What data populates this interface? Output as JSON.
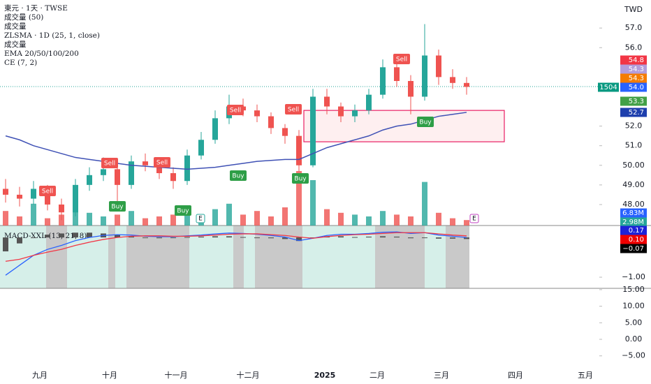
{
  "header": {
    "legend": [
      "東元 · 1天 · TWSE",
      "成交量 (50)",
      "成交量",
      "ZLSMA · 1D (25, 1, close)",
      "成交量",
      "EMA 20/50/100/200",
      "CE (7, 2)"
    ],
    "currency": "TWD",
    "macd_title": "MACD-XXL (13, 21, 8)"
  },
  "chart_data": {
    "type": "candlestick",
    "open": [
      48.8,
      48.5,
      48.3,
      48.8,
      48.0,
      47.6,
      49.0,
      49.5,
      49.8,
      49.0,
      50.2,
      50.0,
      49.6,
      49.2,
      50.5,
      51.3,
      52.4,
      53.0,
      52.8,
      52.5,
      51.9,
      51.5,
      50.0,
      53.5,
      53.0,
      52.5,
      52.8,
      53.6,
      55.0,
      54.3,
      53.5,
      55.6,
      54.5,
      54.2
    ],
    "high": [
      49.3,
      48.9,
      49.2,
      49.0,
      48.3,
      49.3,
      49.9,
      50.4,
      50.1,
      50.5,
      50.6,
      50.3,
      49.9,
      50.8,
      51.7,
      52.8,
      53.6,
      53.4,
      53.1,
      52.7,
      52.1,
      51.8,
      53.9,
      53.9,
      53.2,
      53.1,
      53.9,
      55.4,
      55.3,
      54.6,
      57.2,
      55.9,
      54.9,
      54.5
    ],
    "low": [
      48.1,
      47.9,
      48.0,
      47.7,
      47.2,
      47.4,
      48.7,
      49.2,
      48.0,
      48.8,
      49.7,
      49.3,
      48.8,
      49.0,
      50.3,
      51.1,
      52.1,
      52.5,
      52.2,
      51.6,
      51.1,
      49.7,
      49.9,
      52.6,
      52.2,
      52.2,
      52.6,
      53.4,
      54.0,
      52.6,
      53.3,
      54.1,
      53.9,
      53.6
    ],
    "close": [
      48.5,
      48.3,
      48.8,
      48.0,
      47.6,
      49.0,
      49.5,
      49.8,
      49.0,
      50.2,
      50.0,
      49.6,
      49.2,
      50.5,
      51.3,
      52.4,
      53.0,
      52.8,
      52.5,
      51.9,
      51.5,
      50.0,
      53.5,
      53.0,
      52.5,
      52.8,
      53.6,
      55.0,
      54.3,
      53.5,
      55.6,
      54.5,
      54.2,
      54.0
    ],
    "up_color": "#26a69a",
    "down_color": "#ef5350",
    "ylim": [
      46.93,
      58.43
    ],
    "yticks": [
      {
        "value": 57,
        "label": "57.0"
      },
      {
        "value": 56,
        "label": "56.0"
      },
      {
        "value": 52,
        "label": "52.0"
      },
      {
        "value": 51,
        "label": "51.0"
      },
      {
        "value": 50,
        "label": "50.00"
      },
      {
        "value": 49,
        "label": "49.00"
      },
      {
        "value": 48,
        "label": "48.00"
      }
    ],
    "ema": {
      "color": "#3f51b5",
      "values": [
        51.5,
        51.3,
        51.0,
        50.8,
        50.6,
        50.4,
        50.3,
        50.2,
        50.1,
        50.0,
        49.95,
        49.9,
        49.85,
        49.8,
        49.85,
        49.9,
        50.0,
        50.1,
        50.2,
        50.25,
        50.3,
        50.3,
        50.6,
        50.9,
        51.1,
        51.3,
        51.5,
        51.8,
        52.0,
        52.1,
        52.3,
        52.5,
        52.6,
        52.7
      ]
    },
    "volume": {
      "values": [
        8,
        5,
        12,
        4,
        6,
        9,
        7,
        5,
        6,
        8,
        4,
        5,
        6,
        7,
        5,
        9,
        12,
        6,
        8,
        5,
        10,
        30,
        25,
        9,
        7,
        6,
        5,
        8,
        6,
        5,
        24,
        7,
        4,
        3
      ],
      "ylim": [
        0,
        50
      ]
    },
    "zone": {
      "low": 51.2,
      "high": 52.8
    },
    "x_labels": [
      "九月",
      "十月",
      "十一月",
      "十二月",
      "2025",
      "二月",
      "三月",
      "四月",
      "五月"
    ],
    "signals": [
      "Sell",
      "Sell",
      "Sell",
      "Sell",
      "Sell",
      "Sell",
      "Buy",
      "Buy",
      "Buy",
      "Buy",
      "Buy"
    ],
    "markers": [
      "E",
      "E"
    ],
    "badges": [
      {
        "value": 54.8,
        "color": "#f23645"
      },
      {
        "value": 54.3,
        "color": "#b39ddb"
      },
      {
        "value": 54.3,
        "color": "#f57c00"
      },
      {
        "value": 54,
        "label": "54.0",
        "color": "#2962ff"
      },
      {
        "value": 53.3,
        "color": "#43a047"
      },
      {
        "value": 52.7,
        "color": "#1e3fad"
      },
      {
        "value": 6.83,
        "label": "6.83M",
        "color": "#2962ff"
      },
      {
        "value": 2.98,
        "label": "2.98M",
        "color": "#26a69a"
      },
      {
        "value": 0.17,
        "color": "#1e22d8"
      },
      {
        "value": 0.1,
        "label": "0.10",
        "color": "#f00000"
      },
      {
        "value": -0.07,
        "label": "−0.07",
        "color": "#000000"
      }
    ],
    "countdown": 1504,
    "macd": {
      "ylim": [
        -1.28,
        0.3
      ],
      "yticks": [
        {
          "value": -1,
          "label": "−1.00"
        }
      ],
      "macd": {
        "color": "#2962ff",
        "values": [
          -0.95,
          -0.7,
          -0.45,
          -0.3,
          -0.2,
          -0.08,
          0.0,
          0.05,
          0.07,
          0.06,
          0.03,
          0.02,
          0.02,
          0.04,
          0.06,
          0.09,
          0.11,
          0.1,
          0.08,
          0.05,
          0.01,
          -0.08,
          -0.02,
          0.05,
          0.08,
          0.08,
          0.1,
          0.13,
          0.14,
          0.1,
          0.12,
          0.06,
          0.03,
          0.0
        ]
      },
      "signal": {
        "color": "#f23645",
        "values": [
          -0.6,
          -0.55,
          -0.45,
          -0.37,
          -0.3,
          -0.2,
          -0.12,
          -0.05,
          0.0,
          0.03,
          0.04,
          0.04,
          0.03,
          0.03,
          0.04,
          0.06,
          0.08,
          0.09,
          0.09,
          0.07,
          0.05,
          0.01,
          -0.02,
          0.02,
          0.05,
          0.07,
          0.08,
          0.1,
          0.12,
          0.12,
          0.12,
          0.09,
          0.06,
          0.04
        ]
      },
      "histogram": {
        "color": "#555555",
        "values": [
          -0.35,
          -0.15,
          0,
          0.07,
          0.1,
          0.12,
          0.12,
          0.1,
          0.07,
          0.03,
          -0.01,
          -0.02,
          -0.01,
          0.01,
          0.02,
          0.03,
          0.03,
          0.01,
          -0.01,
          -0.02,
          -0.04,
          -0.09,
          0,
          0.03,
          0.03,
          0.01,
          0.02,
          0.03,
          0.02,
          -0.02,
          0,
          -0.03,
          -0.03,
          -0.04
        ]
      }
    },
    "lower": {
      "ylim": [
        -7.8,
        15.4
      ],
      "yticks": [
        {
          "value": 15,
          "label": "15.00"
        },
        {
          "value": 10,
          "label": "10.00"
        },
        {
          "value": 5,
          "label": "5.00"
        },
        {
          "value": 0,
          "label": "0.00"
        },
        {
          "value": -5,
          "label": "−5.00"
        }
      ]
    }
  }
}
